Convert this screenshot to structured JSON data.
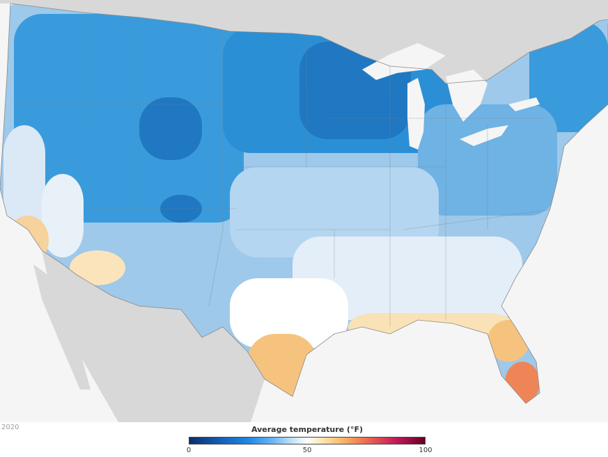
{
  "map": {
    "region": "Contiguous United States",
    "land_outside_color": "#d8d8d8",
    "water_color": "#f5f5f5",
    "great_lakes_color": "#f5f5f5",
    "us_outline_color": "#888888"
  },
  "footer": {
    "year": "2020"
  },
  "legend": {
    "title": "Average temperature (°F)",
    "min": 0,
    "max": 100,
    "ticks": [
      {
        "value": 0,
        "label": "0"
      },
      {
        "value": 50,
        "label": "50"
      },
      {
        "value": 100,
        "label": "100"
      }
    ],
    "color_stops": [
      {
        "value": 0,
        "color": "#08306b"
      },
      {
        "value": 15,
        "color": "#1565c0"
      },
      {
        "value": 25,
        "color": "#1e88e5"
      },
      {
        "value": 35,
        "color": "#64b5f6"
      },
      {
        "value": 43,
        "color": "#bbdefb"
      },
      {
        "value": 50,
        "color": "#ffffff"
      },
      {
        "value": 57,
        "color": "#fde3a7"
      },
      {
        "value": 65,
        "color": "#f9b768"
      },
      {
        "value": 75,
        "color": "#ef6c4e"
      },
      {
        "value": 88,
        "color": "#c2185b"
      },
      {
        "value": 100,
        "color": "#67001f"
      }
    ]
  }
}
